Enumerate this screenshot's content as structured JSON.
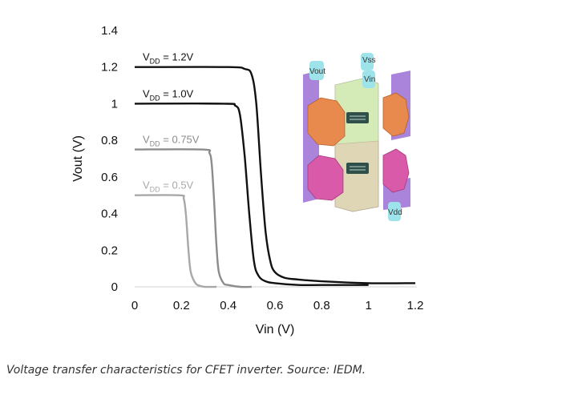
{
  "caption": "Voltage transfer characteristics for CFET inverter. Source: IEDM.",
  "chart_data": {
    "type": "line",
    "title": "",
    "xlabel": "Vin (V)",
    "ylabel": "Vout (V)",
    "xlim": [
      0,
      1.2
    ],
    "ylim": [
      0,
      1.4
    ],
    "x_ticks": [
      "0",
      "0.2",
      "0.4",
      "0.6",
      "0.8",
      "1",
      "1.2"
    ],
    "y_ticks": [
      "0",
      "0.2",
      "0.4",
      "0.6",
      "0.8",
      "1",
      "1.2",
      "1.4"
    ],
    "grid": false,
    "legend": "inline labels",
    "series": [
      {
        "name": "VDD = 1.2V",
        "label_main": "V",
        "label_sub": "DD",
        "label_rest": " = 1.2V",
        "color": "#111111",
        "x": [
          0,
          0.4,
          0.47,
          0.5,
          0.52,
          0.54,
          0.56,
          0.58,
          0.6,
          0.64,
          0.7,
          0.8,
          1.0,
          1.2
        ],
        "y": [
          1.2,
          1.2,
          1.19,
          1.16,
          1.0,
          0.62,
          0.3,
          0.14,
          0.08,
          0.05,
          0.04,
          0.03,
          0.02,
          0.02
        ]
      },
      {
        "name": "VDD = 1.0V",
        "label_main": "V",
        "label_sub": "DD",
        "label_rest": " = 1.0V",
        "color": "#111111",
        "x": [
          0,
          0.38,
          0.43,
          0.45,
          0.47,
          0.49,
          0.51,
          0.53,
          0.56,
          0.6,
          0.7,
          0.8,
          1.0
        ],
        "y": [
          1.0,
          1.0,
          0.99,
          0.94,
          0.72,
          0.4,
          0.14,
          0.06,
          0.03,
          0.02,
          0.01,
          0.01,
          0.01
        ]
      },
      {
        "name": "VDD = 0.75V",
        "label_main": "V",
        "label_sub": "DD",
        "label_rest": " = 0.75V",
        "color": "#8c8c8c",
        "x": [
          0,
          0.29,
          0.32,
          0.33,
          0.34,
          0.35,
          0.36,
          0.38,
          0.4,
          0.45,
          0.5
        ],
        "y": [
          0.75,
          0.75,
          0.73,
          0.66,
          0.46,
          0.22,
          0.08,
          0.02,
          0.01,
          0.0,
          0.0
        ]
      },
      {
        "name": "VDD = 0.5V",
        "label_main": "V",
        "label_sub": "DD",
        "label_rest": " = 0.5V",
        "color": "#a8a8a8",
        "x": [
          0,
          0.19,
          0.21,
          0.22,
          0.23,
          0.24,
          0.26,
          0.28,
          0.3,
          0.35
        ],
        "y": [
          0.5,
          0.5,
          0.48,
          0.38,
          0.2,
          0.08,
          0.02,
          0.005,
          0.0,
          0.0
        ]
      }
    ]
  },
  "inset": {
    "labels": {
      "vout": "Vout",
      "vss": "Vss",
      "vin": "Vin",
      "vdd": "Vdd"
    },
    "colors": {
      "rail": "#9b6fd4",
      "top_device": "#e88a4d",
      "bottom_device": "#d95aa8",
      "gate": "#c7e5a0",
      "contact": "#9fe3ea",
      "channel": "#2f4f4a"
    }
  }
}
